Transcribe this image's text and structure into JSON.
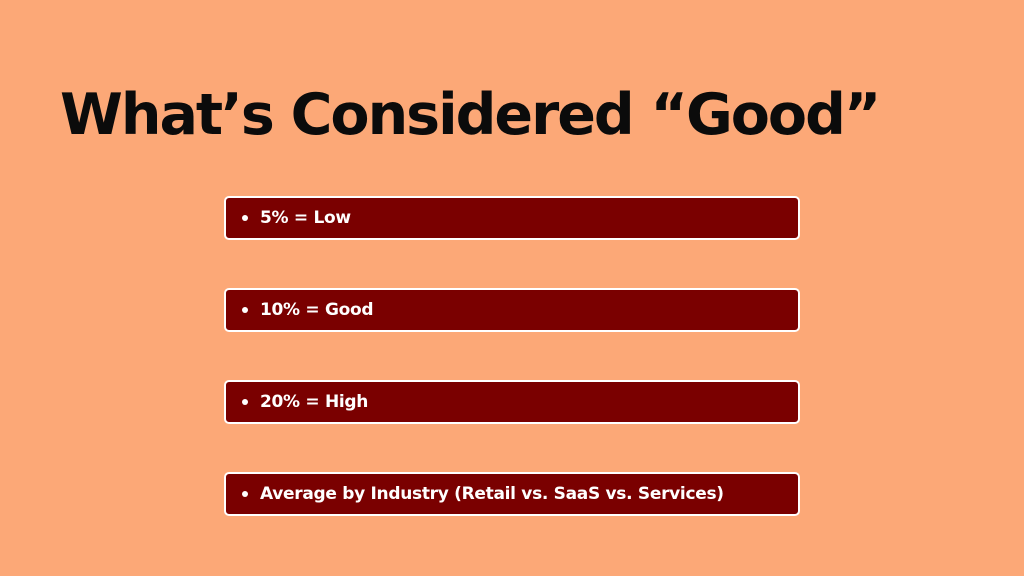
{
  "colors": {
    "background": "#FCA877",
    "title_text": "#0B0B0B",
    "bar_fill": "#7A0000",
    "bar_border": "#FFFFFF",
    "bar_text": "#FFFFFF"
  },
  "slide": {
    "title": "What’s Considered “Good”",
    "items": [
      {
        "label": "5% = Low"
      },
      {
        "label": "10% = Good"
      },
      {
        "label": "20% = High"
      },
      {
        "label": "Average by Industry (Retail vs. SaaS vs. Services)"
      }
    ]
  }
}
